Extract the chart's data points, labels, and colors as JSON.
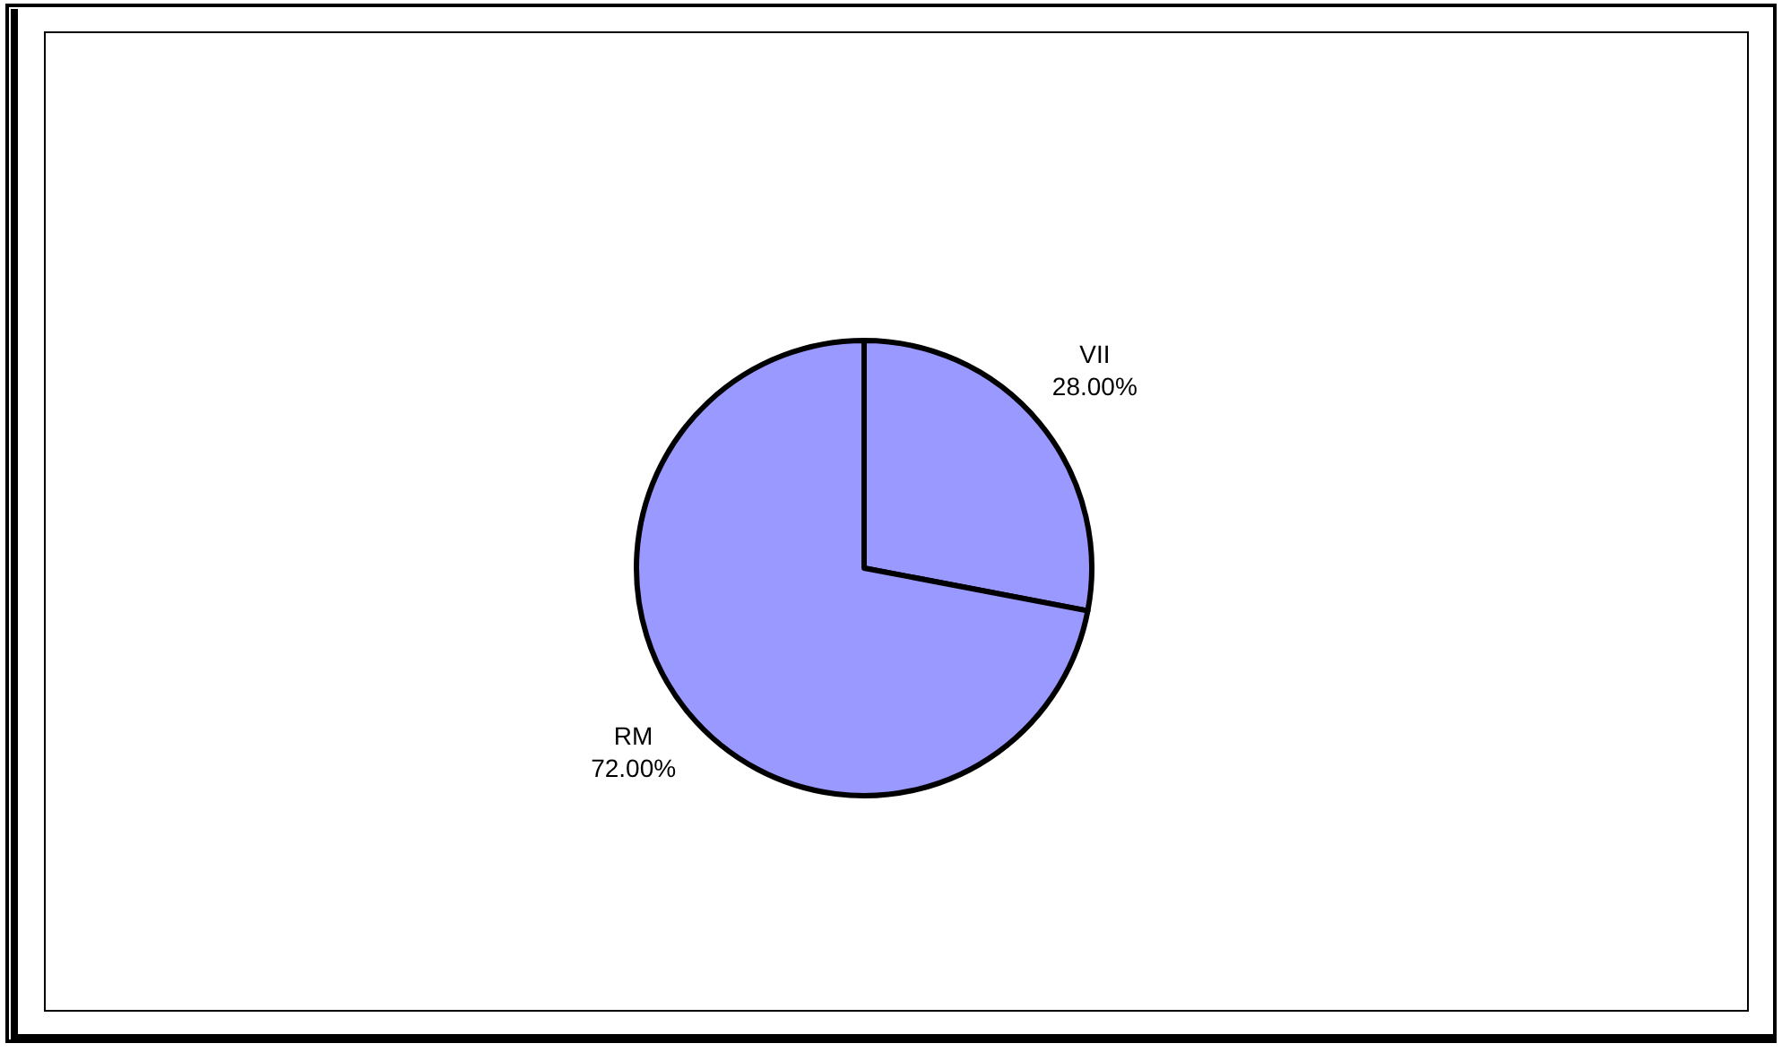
{
  "chart_data": {
    "type": "pie",
    "categories": [
      "RM",
      "VII"
    ],
    "values": [
      72,
      28
    ],
    "colors": [
      "#9999ff",
      "#9999ff"
    ],
    "value_labels": [
      "72.00%",
      "28.00%"
    ],
    "legend": false
  }
}
